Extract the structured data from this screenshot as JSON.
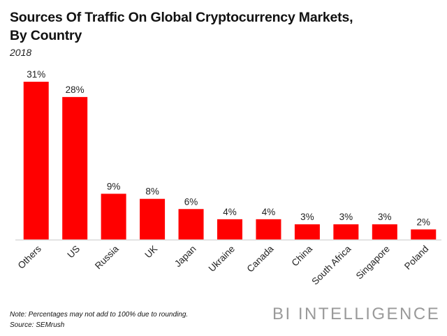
{
  "chart_data": {
    "type": "bar",
    "title": "Sources Of Traffic On Global Cryptocurrency Markets, By Country",
    "title_lines": [
      "Sources Of Traffic On Global Cryptocurrency Markets,",
      "By Country"
    ],
    "subtitle": "2018",
    "xlabel": "",
    "ylabel": "",
    "ylim": [
      0,
      31
    ],
    "grid": false,
    "legend": "none",
    "bar_color": "#ff0000",
    "categories": [
      "Others",
      "US",
      "Russia",
      "UK",
      "Japan",
      "Ukraine",
      "Canada",
      "China",
      "South Africa",
      "Singapore",
      "Poland"
    ],
    "values": [
      31,
      28,
      9,
      8,
      6,
      4,
      4,
      3,
      3,
      3,
      2
    ],
    "data_labels": [
      "31%",
      "28%",
      "9%",
      "8%",
      "6%",
      "4%",
      "4%",
      "3%",
      "3%",
      "3%",
      "2%"
    ],
    "unit": "%"
  },
  "footer": {
    "note": "Note: Percentages may not add to 100% due to rounding.",
    "source": "Source: SEMrush",
    "brand": "BI INTELLIGENCE"
  }
}
